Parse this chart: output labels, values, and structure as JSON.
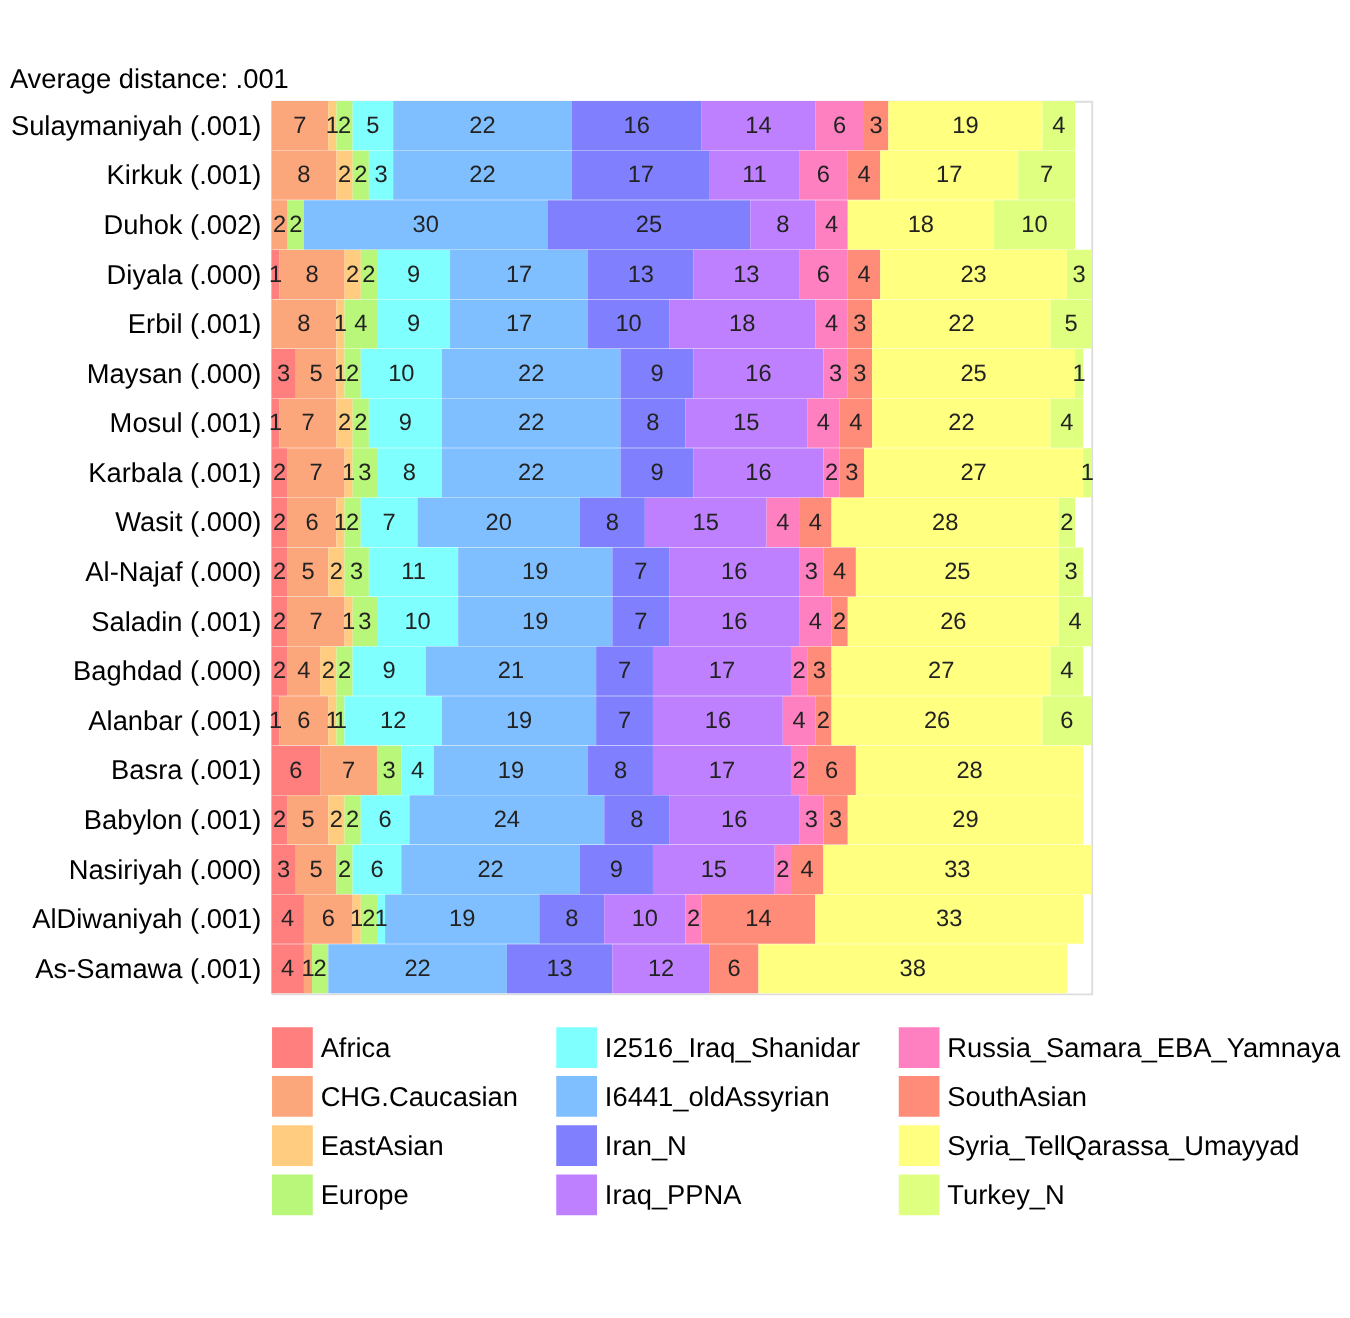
{
  "chart_data": {
    "type": "bar",
    "title": "Average distance: .001",
    "orientation": "horizontal",
    "stacked": true,
    "data_labels": true,
    "legend": "bottom",
    "grid": false,
    "categories": [
      "Sulaymaniyah (.001)",
      "Kirkuk (.001)",
      "Duhok (.002)",
      "Diyala (.000)",
      "Erbil (.001)",
      "Maysan (.000)",
      "Mosul (.001)",
      "Karbala (.001)",
      "Wasit (.000)",
      "Al-Najaf (.000)",
      "Saladin (.001)",
      "Baghdad (.000)",
      "Alanbar (.001)",
      "Basra (.001)",
      "Babylon (.001)",
      "Nasiriyah (.000)",
      "AlDiwaniyah (.001)",
      "As-Samawa (.001)"
    ],
    "series": [
      {
        "name": "Africa",
        "color": "#ff7f7f",
        "values": [
          null,
          null,
          null,
          1,
          null,
          3,
          1,
          2,
          2,
          2,
          2,
          2,
          1,
          6,
          2,
          3,
          4,
          4
        ]
      },
      {
        "name": "CHG.Caucasian",
        "color": "#fca67c",
        "values": [
          7,
          8,
          2,
          8,
          8,
          5,
          7,
          7,
          6,
          5,
          7,
          4,
          6,
          7,
          5,
          5,
          6,
          1
        ]
      },
      {
        "name": "EastAsian",
        "color": "#ffcc80",
        "values": [
          1,
          2,
          null,
          2,
          1,
          1,
          2,
          1,
          1,
          2,
          1,
          2,
          1,
          null,
          2,
          null,
          1,
          null
        ]
      },
      {
        "name": "Europe",
        "color": "#b8f77a",
        "values": [
          2,
          2,
          2,
          2,
          4,
          2,
          2,
          3,
          2,
          3,
          3,
          2,
          1,
          3,
          2,
          2,
          2,
          2
        ]
      },
      {
        "name": "I2516_Iraq_Shanidar",
        "color": "#80ffff",
        "values": [
          5,
          3,
          null,
          9,
          9,
          10,
          9,
          8,
          7,
          11,
          10,
          9,
          12,
          4,
          6,
          6,
          1,
          null
        ]
      },
      {
        "name": "I6441_oldAssyrian",
        "color": "#80bfff",
        "values": [
          22,
          22,
          30,
          17,
          17,
          22,
          22,
          22,
          20,
          19,
          19,
          21,
          19,
          19,
          24,
          22,
          19,
          22
        ]
      },
      {
        "name": "Iran_N",
        "color": "#8080ff",
        "values": [
          16,
          17,
          25,
          13,
          10,
          9,
          8,
          9,
          8,
          7,
          7,
          7,
          7,
          8,
          8,
          9,
          8,
          13
        ]
      },
      {
        "name": "Iraq_PPNA",
        "color": "#bf80ff",
        "values": [
          14,
          11,
          8,
          13,
          18,
          16,
          15,
          16,
          15,
          16,
          16,
          17,
          16,
          17,
          16,
          15,
          10,
          12
        ]
      },
      {
        "name": "Russia_Samara_EBA_Yamnaya",
        "color": "#ff80c0",
        "values": [
          6,
          6,
          4,
          6,
          4,
          3,
          4,
          2,
          4,
          3,
          4,
          2,
          4,
          2,
          3,
          2,
          2,
          null
        ]
      },
      {
        "name": "SouthAsian",
        "color": "#ff8c78",
        "values": [
          3,
          4,
          null,
          4,
          3,
          3,
          4,
          3,
          4,
          4,
          2,
          3,
          2,
          6,
          3,
          4,
          14,
          6
        ]
      },
      {
        "name": "Syria_TellQarassa_Umayyad",
        "color": "#ffff80",
        "values": [
          19,
          17,
          18,
          23,
          22,
          25,
          22,
          27,
          28,
          25,
          26,
          27,
          26,
          28,
          29,
          33,
          33,
          38
        ]
      },
      {
        "name": "Turkey_N",
        "color": "#dfff80",
        "values": [
          4,
          7,
          10,
          3,
          5,
          1,
          4,
          1,
          2,
          3,
          4,
          4,
          6,
          null,
          null,
          null,
          null,
          null
        ]
      }
    ]
  }
}
